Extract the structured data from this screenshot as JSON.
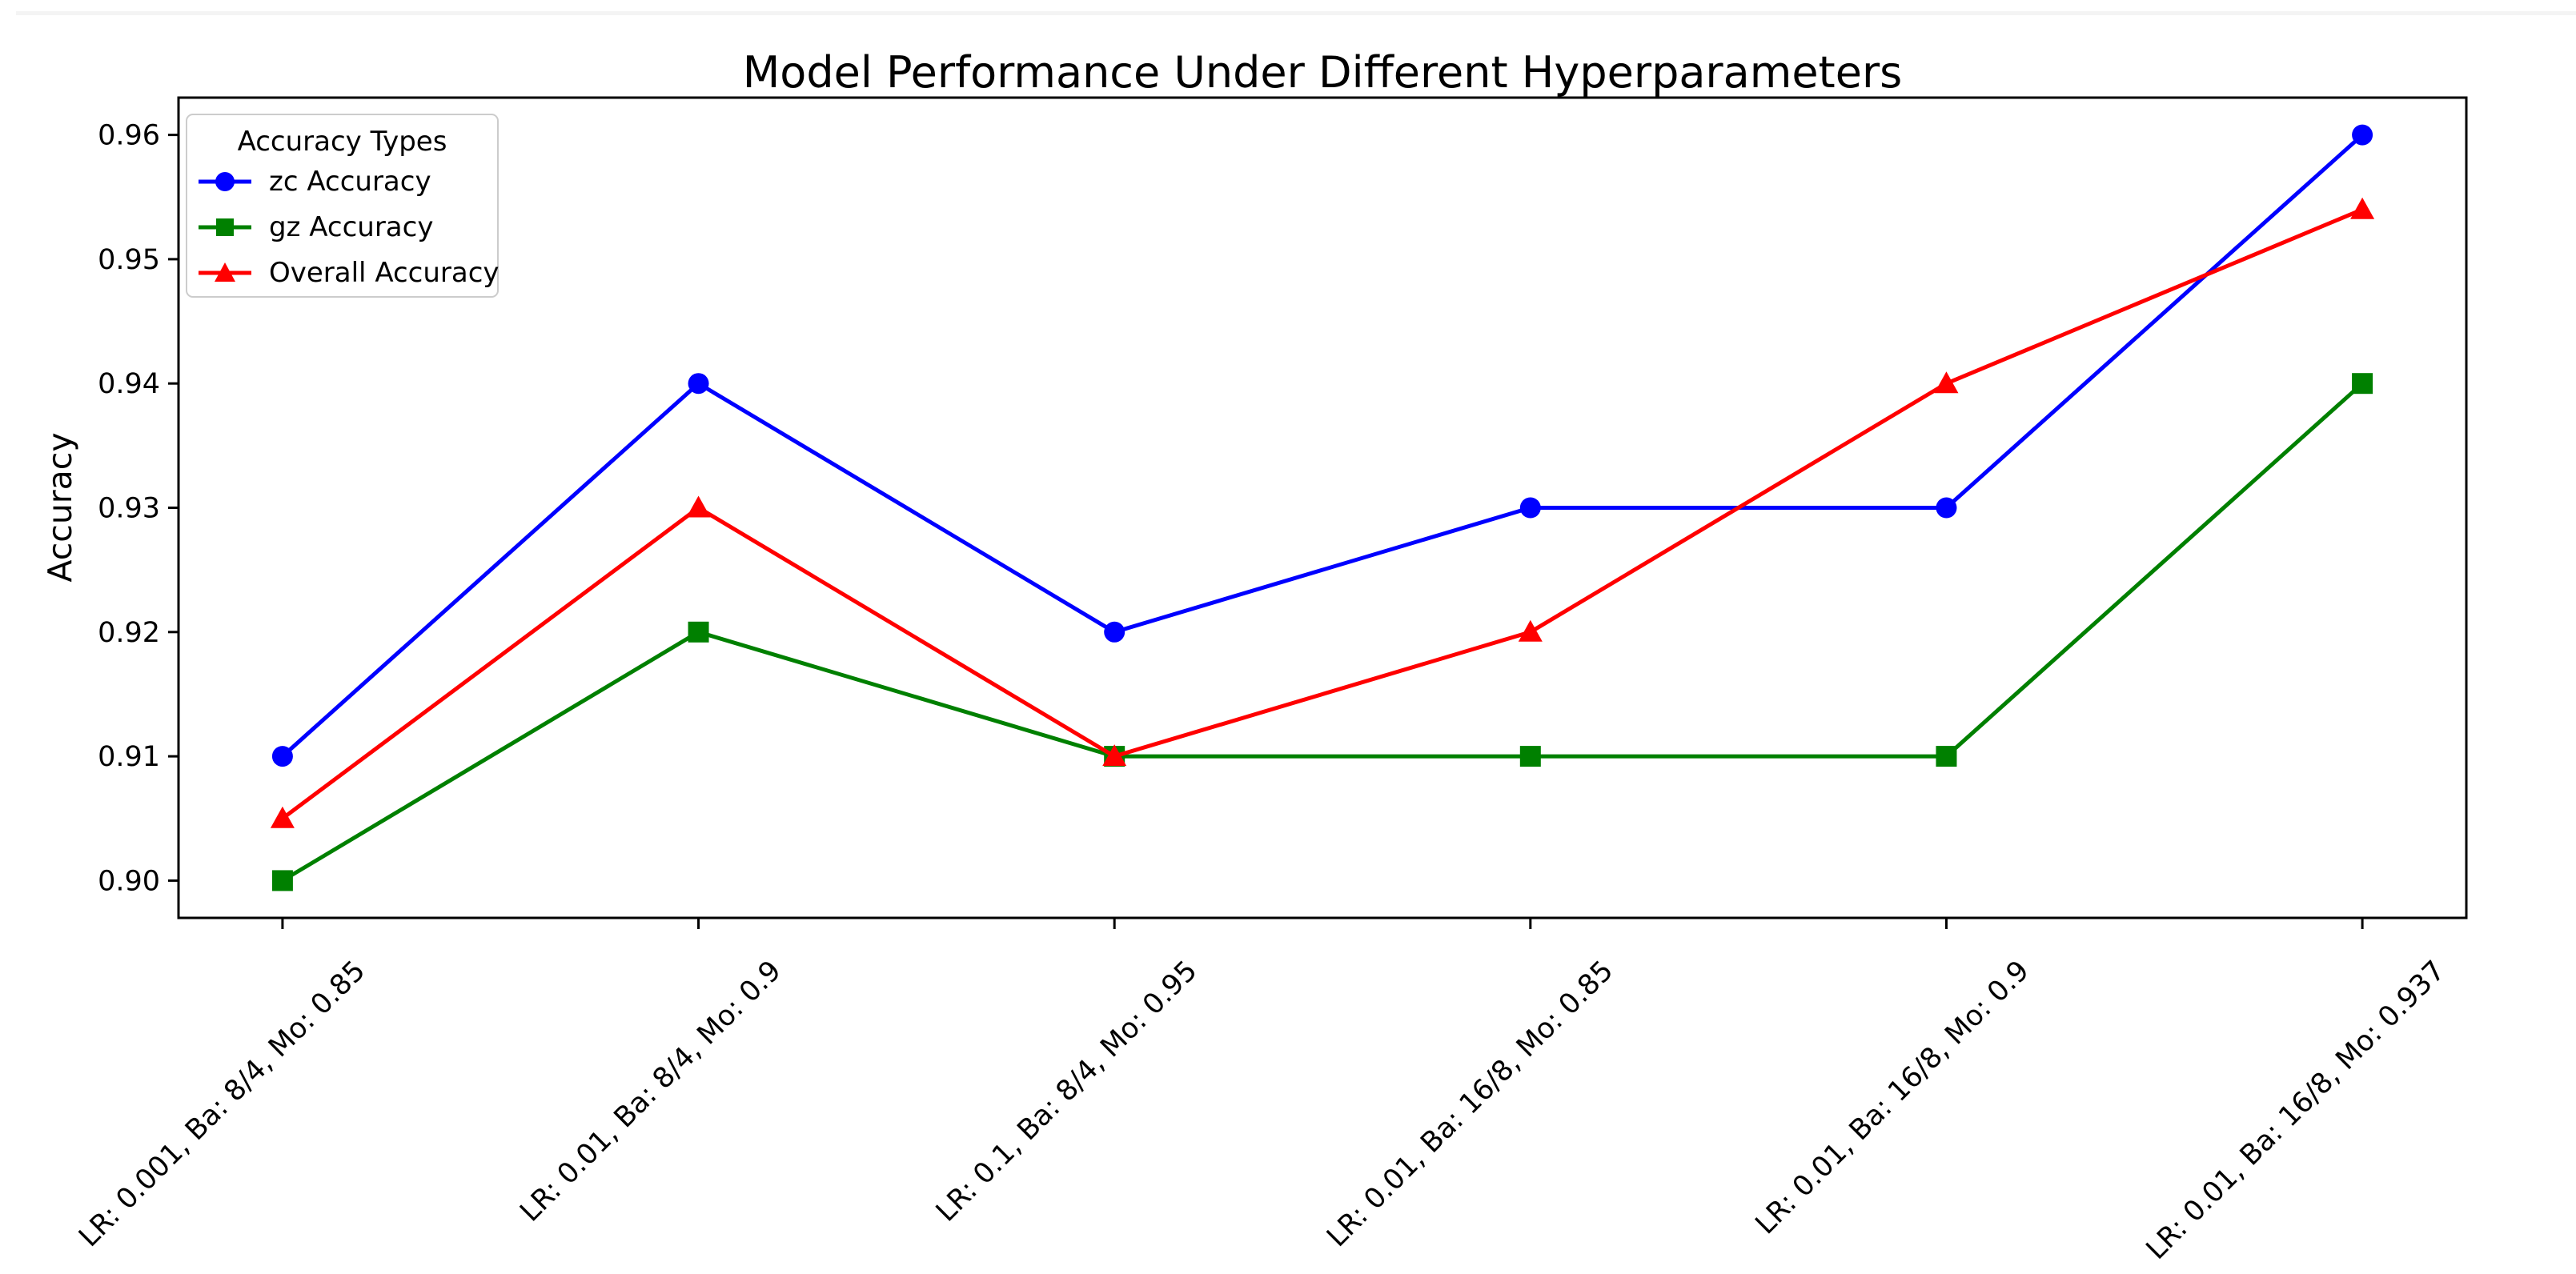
{
  "chart_data": {
    "type": "line",
    "title": "Model Performance Under Different Hyperparameters",
    "xlabel": "",
    "ylabel": "Accuracy",
    "legend_title": "Accuracy Types",
    "legend_position": "upper left",
    "grid": false,
    "categories": [
      "LR: 0.001, Ba: 8/4, Mo: 0.85",
      "LR: 0.01, Ba: 8/4, Mo: 0.9",
      "LR: 0.1, Ba: 8/4, Mo: 0.95",
      "LR: 0.01, Ba: 16/8, Mo: 0.85",
      "LR: 0.01, Ba: 16/8, Mo: 0.9",
      "LR: 0.01, Ba: 16/8, Mo: 0.937"
    ],
    "series": [
      {
        "name": "zc Accuracy",
        "color": "#0000ff",
        "marker": "circle",
        "values": [
          0.91,
          0.94,
          0.92,
          0.93,
          0.93,
          0.96
        ]
      },
      {
        "name": "gz Accuracy",
        "color": "#008000",
        "marker": "square",
        "values": [
          0.9,
          0.92,
          0.91,
          0.91,
          0.91,
          0.94
        ]
      },
      {
        "name": "Overall Accuracy",
        "color": "#ff0000",
        "marker": "triangle",
        "values": [
          0.905,
          0.93,
          0.91,
          0.92,
          0.94,
          0.954
        ]
      }
    ],
    "yticks": [
      "0.90",
      "0.91",
      "0.92",
      "0.93",
      "0.94",
      "0.95",
      "0.96"
    ],
    "ylim": [
      0.897,
      0.963
    ],
    "axis_color": "#000000",
    "tick_label_color": "#000000"
  }
}
